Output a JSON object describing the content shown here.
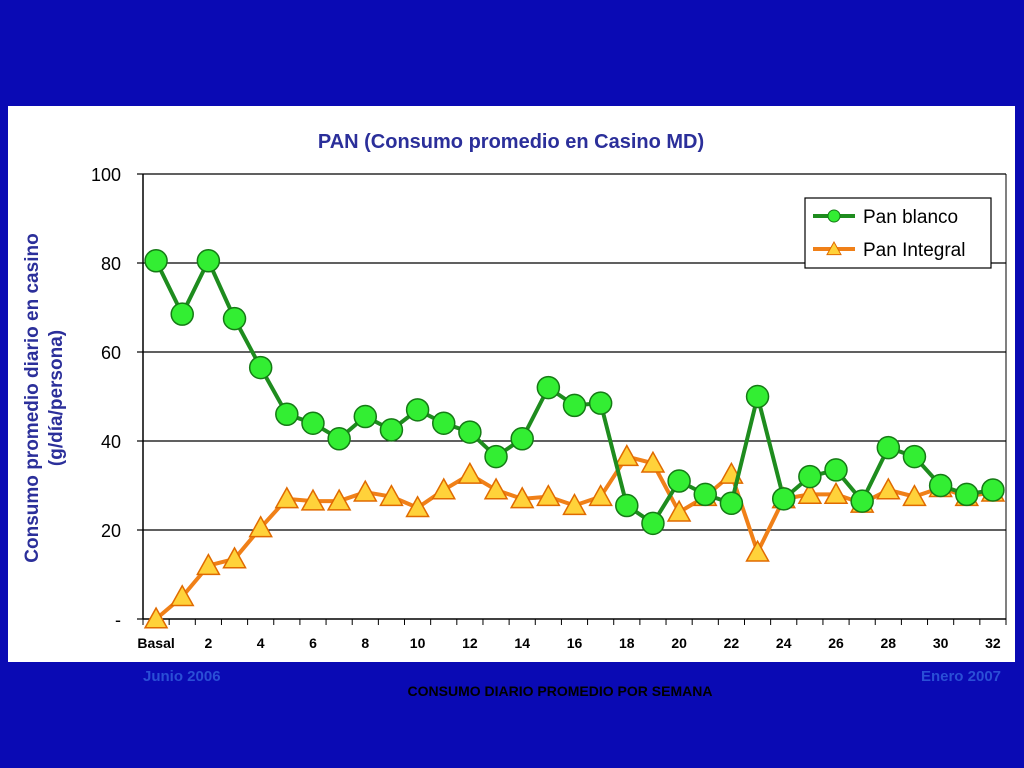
{
  "chart_data": {
    "type": "line",
    "title": "PAN (Consumo promedio en Casino MD)",
    "ylabel_line1": "Consumo promedio diario en casino",
    "ylabel_line2": "(g/día/persona)",
    "xlabel": "CONSUMO DIARIO PROMEDIO POR SEMANA",
    "ylim": [
      0,
      100
    ],
    "yticks": [
      {
        "value": 0,
        "label": "-"
      },
      {
        "value": 20,
        "label": "20"
      },
      {
        "value": 40,
        "label": "40"
      },
      {
        "value": 60,
        "label": "60"
      },
      {
        "value": 80,
        "label": "80"
      },
      {
        "value": 100,
        "label": "100"
      }
    ],
    "grid": true,
    "legend_position": "top-right",
    "categories": [
      "Basal",
      "1",
      "2",
      "3",
      "4",
      "5",
      "6",
      "7",
      "8",
      "9",
      "10",
      "11",
      "12",
      "13",
      "14",
      "15",
      "16",
      "17",
      "18",
      "19",
      "20",
      "21",
      "22",
      "23",
      "24",
      "25",
      "26",
      "27",
      "28",
      "29",
      "30",
      "31",
      "32"
    ],
    "xtick_labels": [
      "Basal",
      "",
      "2",
      "",
      "4",
      "",
      "6",
      "",
      "8",
      "",
      "10",
      "",
      "12",
      "",
      "14",
      "",
      "16",
      "",
      "18",
      "",
      "20",
      "",
      "22",
      "",
      "24",
      "",
      "26",
      "",
      "28",
      "",
      "30",
      "",
      "32"
    ],
    "series": [
      {
        "name": "Pan blanco",
        "color": "#1e8c1e",
        "marker_fill": "#33ee33",
        "marker": "circle",
        "values": [
          80.5,
          68.5,
          80.5,
          67.5,
          56.5,
          46,
          44,
          40.5,
          45.5,
          42.5,
          47,
          44,
          42,
          36.5,
          40.5,
          52,
          48,
          48.5,
          25.5,
          21.5,
          31,
          28,
          26,
          50,
          27,
          32,
          33.5,
          26.5,
          38.5,
          36.5,
          30,
          28,
          29
        ]
      },
      {
        "name": "Pan Integral",
        "color": "#f08018",
        "marker_fill": "#ffd23a",
        "marker": "triangle",
        "values": [
          0,
          5,
          12,
          13.5,
          20.5,
          27,
          26.5,
          26.5,
          28.5,
          27.5,
          25,
          29,
          32.5,
          29,
          27,
          27.5,
          25.5,
          27.5,
          36.5,
          35,
          24,
          27.5,
          32.5,
          15,
          27,
          28,
          28,
          26,
          29,
          27.5,
          29.5,
          27.5,
          28.5
        ]
      }
    ]
  },
  "footer": {
    "left_note": "Junio 2006",
    "right_note": "Enero 2007"
  }
}
